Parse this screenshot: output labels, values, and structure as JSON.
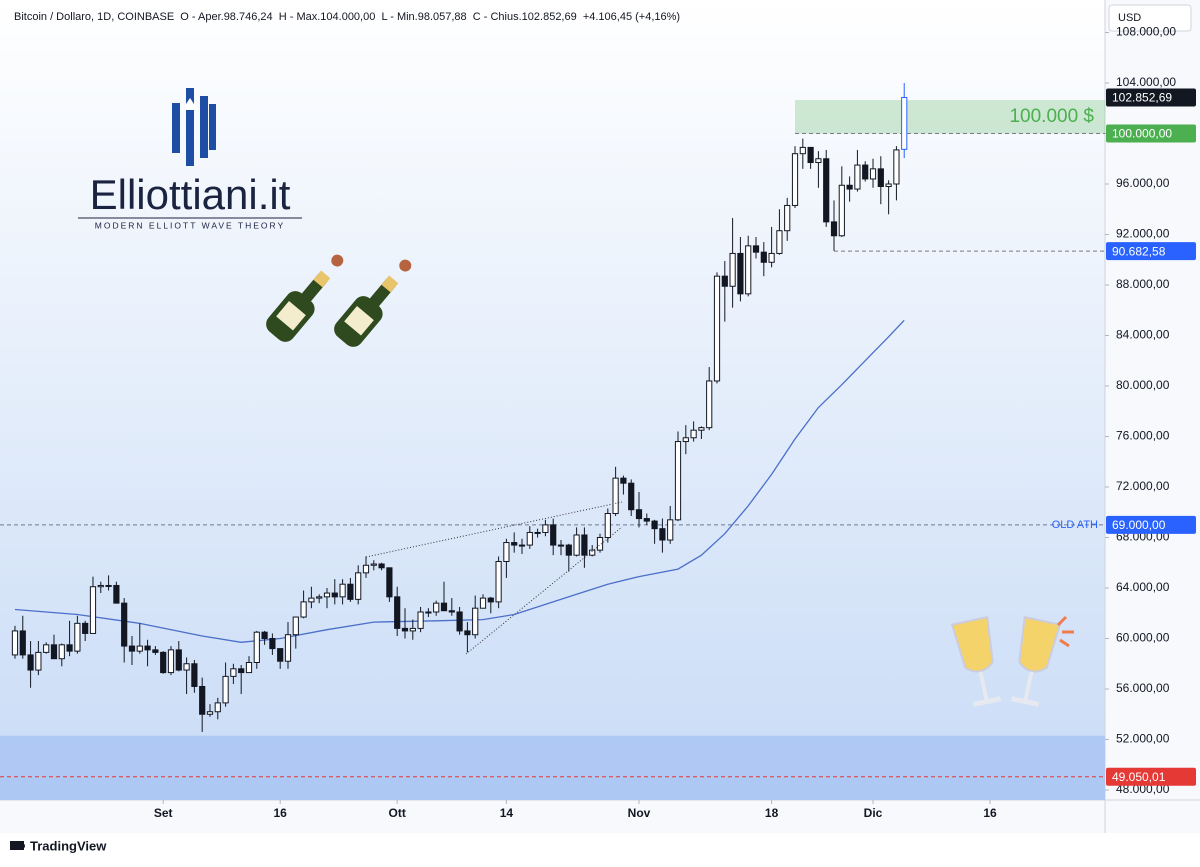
{
  "header": "Bitcoin / Dollaro, 1D, COINBASE  O - Aper.98.746,24  H - Max.104.000,00  L - Min.98.057,88  C - Chius.102.852,69  +4.106,45 (+4,16%)",
  "currency": "USD",
  "logo": {
    "name": "Elliottiani.it",
    "tagline": "MODERN ELLIOTT WAVE THEORY"
  },
  "footer": "TradingView",
  "chart_data": {
    "type": "candlestick",
    "up_color": "#ffffff",
    "down_color": "#131722",
    "wick_color": "#131722",
    "open": [
      58700,
      60600,
      58700,
      57500,
      58900,
      59500,
      58400,
      59500,
      59000,
      61200,
      60400,
      64100,
      64200,
      64200,
      62800,
      59400,
      59000,
      59400,
      59100,
      58900,
      57300,
      59100,
      57500,
      58000,
      56200,
      54000,
      54200,
      54900,
      57000,
      57600,
      57300,
      58100,
      60500,
      60000,
      59200,
      58200,
      60300,
      61700,
      62900,
      63200,
      63300,
      63600,
      63300,
      64300,
      63100,
      65200,
      65800,
      65900,
      65600,
      63300,
      60800,
      60600,
      60800,
      62100,
      62100,
      62800,
      62200,
      62100,
      60600,
      60300,
      62400,
      63200,
      62900,
      66100,
      67600,
      67400,
      67400,
      68400,
      68400,
      69000,
      67400,
      67400,
      66600,
      68200,
      66600,
      67000,
      68000,
      69900,
      72700,
      72300,
      70200,
      69500,
      69300,
      68700,
      67800,
      69400,
      75600,
      75900,
      76500,
      76700,
      80400,
      88700,
      87900,
      90500,
      87300,
      91100,
      90600,
      89800,
      90500,
      92300,
      94300,
      98400,
      98900,
      97700,
      98000,
      93000,
      91900,
      95900,
      95600,
      97500,
      96400,
      97200,
      95800,
      96000,
      98746.24
    ],
    "high": [
      61000,
      61800,
      59800,
      59800,
      59700,
      60300,
      59600,
      61400,
      61800,
      61400,
      64900,
      64500,
      65000,
      64500,
      63200,
      60200,
      61200,
      59900,
      59400,
      59000,
      59400,
      59800,
      58500,
      58300,
      56900,
      54800,
      55300,
      58100,
      58000,
      57900,
      58600,
      60600,
      60600,
      60400,
      59200,
      61300,
      61700,
      63800,
      64100,
      63500,
      64000,
      64700,
      64700,
      64800,
      65800,
      66500,
      66200,
      66000,
      65600,
      64100,
      62400,
      61500,
      62500,
      62400,
      63000,
      64500,
      63200,
      62500,
      61300,
      63400,
      63500,
      63300,
      66500,
      67900,
      68400,
      67900,
      68900,
      68700,
      69400,
      69500,
      67800,
      67500,
      68800,
      68800,
      67400,
      68300,
      70300,
      73600,
      72900,
      72600,
      71600,
      69900,
      69400,
      69500,
      70500,
      76400,
      76900,
      77200,
      76800,
      81500,
      89000,
      89900,
      93300,
      91800,
      91900,
      91800,
      91400,
      92600,
      94000,
      94900,
      99000,
      99600,
      98900,
      98600,
      98700,
      94700,
      97400,
      96600,
      98700,
      97800,
      98000,
      98200,
      96300,
      99000,
      104000
    ],
    "low": [
      58400,
      58400,
      56100,
      57100,
      58800,
      58400,
      57800,
      58600,
      58800,
      59800,
      60400,
      63600,
      63800,
      62800,
      58100,
      57900,
      58800,
      57800,
      58700,
      57200,
      57100,
      57400,
      55600,
      55700,
      52600,
      53800,
      53600,
      54600,
      56400,
      55600,
      57300,
      57600,
      59500,
      58700,
      57600,
      57600,
      59200,
      61600,
      62400,
      62800,
      62400,
      62700,
      62700,
      62900,
      62700,
      64800,
      65400,
      65400,
      62900,
      60200,
      60000,
      59900,
      60500,
      61700,
      61800,
      62200,
      61800,
      60300,
      58900,
      60000,
      62400,
      62000,
      62400,
      64800,
      66800,
      66700,
      67100,
      68000,
      68100,
      66600,
      66600,
      65300,
      66500,
      65600,
      66500,
      66800,
      67600,
      69700,
      71400,
      69700,
      68800,
      69000,
      67500,
      66800,
      67500,
      69300,
      74600,
      75600,
      75800,
      76500,
      80200,
      85100,
      86200,
      86700,
      87100,
      90100,
      88700,
      89400,
      90400,
      91500,
      94100,
      97200,
      97200,
      95700,
      92600,
      90700,
      91800,
      94600,
      95400,
      96200,
      95700,
      94400,
      93600,
      94700,
      98057.88
    ],
    "close": [
      60600,
      58700,
      57500,
      58900,
      59500,
      58400,
      59500,
      59000,
      61200,
      60400,
      64100,
      64200,
      64200,
      62800,
      59400,
      59000,
      59400,
      59100,
      58900,
      57300,
      59100,
      57500,
      58000,
      56200,
      54000,
      54200,
      54900,
      57000,
      57600,
      57300,
      58100,
      60500,
      60000,
      59200,
      58200,
      60300,
      61700,
      62900,
      63200,
      63300,
      63600,
      63300,
      64300,
      63100,
      65200,
      65800,
      65900,
      65600,
      63300,
      60800,
      60600,
      60800,
      62100,
      62100,
      62800,
      62200,
      62100,
      60600,
      60300,
      62400,
      63200,
      62900,
      66100,
      67600,
      67400,
      67400,
      68400,
      68400,
      69000,
      67400,
      67400,
      66600,
      68200,
      66600,
      67000,
      68000,
      69900,
      72700,
      72300,
      70200,
      69500,
      69300,
      68700,
      67800,
      69400,
      75600,
      75900,
      76500,
      76700,
      80400,
      88700,
      87900,
      90500,
      87300,
      91100,
      90600,
      89800,
      90500,
      92300,
      94300,
      98400,
      98900,
      97700,
      98000,
      93000,
      91900,
      95900,
      95600,
      97500,
      96400,
      97200,
      95800,
      96000,
      98700,
      102852.69
    ],
    "ma": {
      "color": "#4a6fc9",
      "x": [
        0,
        8,
        16,
        24,
        29,
        34,
        40,
        46,
        54,
        60,
        64,
        68,
        72,
        76,
        80,
        85,
        88,
        91,
        94,
        97,
        100,
        103,
        106,
        109,
        112,
        114
      ],
      "values": [
        62300,
        61900,
        61200,
        60200,
        59700,
        60000,
        60700,
        61300,
        61400,
        61500,
        61900,
        62700,
        63500,
        64300,
        64900,
        65500,
        66600,
        68300,
        70500,
        73000,
        75800,
        78300,
        80100,
        82000,
        83900,
        85200
      ]
    },
    "xlim": [
      -1.92,
      139.74
    ],
    "xticks": [
      {
        "value": 19,
        "label": "Set"
      },
      {
        "value": 34,
        "label": "16"
      },
      {
        "value": 49,
        "label": "Ott"
      },
      {
        "value": 63,
        "label": "14"
      },
      {
        "value": 80,
        "label": "Nov"
      },
      {
        "value": 97,
        "label": "18"
      },
      {
        "value": 110,
        "label": "Dic"
      },
      {
        "value": 125,
        "label": "16"
      }
    ],
    "ylim": [
      47208,
      110574
    ],
    "yticks": [
      {
        "value": 48000,
        "label": "48.000,00"
      },
      {
        "value": 52000,
        "label": "52.000,00"
      },
      {
        "value": 56000,
        "label": "56.000,00"
      },
      {
        "value": 60000,
        "label": "60.000,00"
      },
      {
        "value": 64000,
        "label": "64.000,00"
      },
      {
        "value": 68000,
        "label": "68.000,00"
      },
      {
        "value": 72000,
        "label": "72.000,00"
      },
      {
        "value": 76000,
        "label": "76.000,00"
      },
      {
        "value": 80000,
        "label": "80.000,00"
      },
      {
        "value": 84000,
        "label": "84.000,00"
      },
      {
        "value": 88000,
        "label": "88.000,00"
      },
      {
        "value": 92000,
        "label": "92.000,00"
      },
      {
        "value": 96000,
        "label": "96.000,00"
      },
      {
        "value": 100000,
        "label": "100.000,00"
      },
      {
        "value": 104000,
        "label": "104.000,00"
      },
      {
        "value": 108000,
        "label": "108.000,00"
      }
    ],
    "grid": false,
    "zone": {
      "from": 100000,
      "to": 102650,
      "start": 100,
      "label": "100.000 $",
      "color": "#4caf50"
    },
    "band": {
      "from": 47208,
      "to": 52300,
      "color": "#a8c3f4"
    },
    "levels": [
      {
        "value": 102852.69,
        "label": "102.852,69",
        "color": "#131722"
      },
      {
        "value": 100000,
        "label": "100.000,00",
        "color": "#4caf50",
        "line": "#787b86",
        "start": 100
      },
      {
        "value": 90682.58,
        "label": "90.682,58",
        "color": "#2962ff",
        "line": "#787b86",
        "start": 105
      },
      {
        "value": 69000,
        "label": "69.000,00",
        "color": "#2962ff",
        "line": "#6b7a99",
        "note": "OLD ATH"
      },
      {
        "value": 49050.01,
        "label": "49.050,01",
        "color": "#e53935",
        "line": "#e53935"
      }
    ]
  }
}
